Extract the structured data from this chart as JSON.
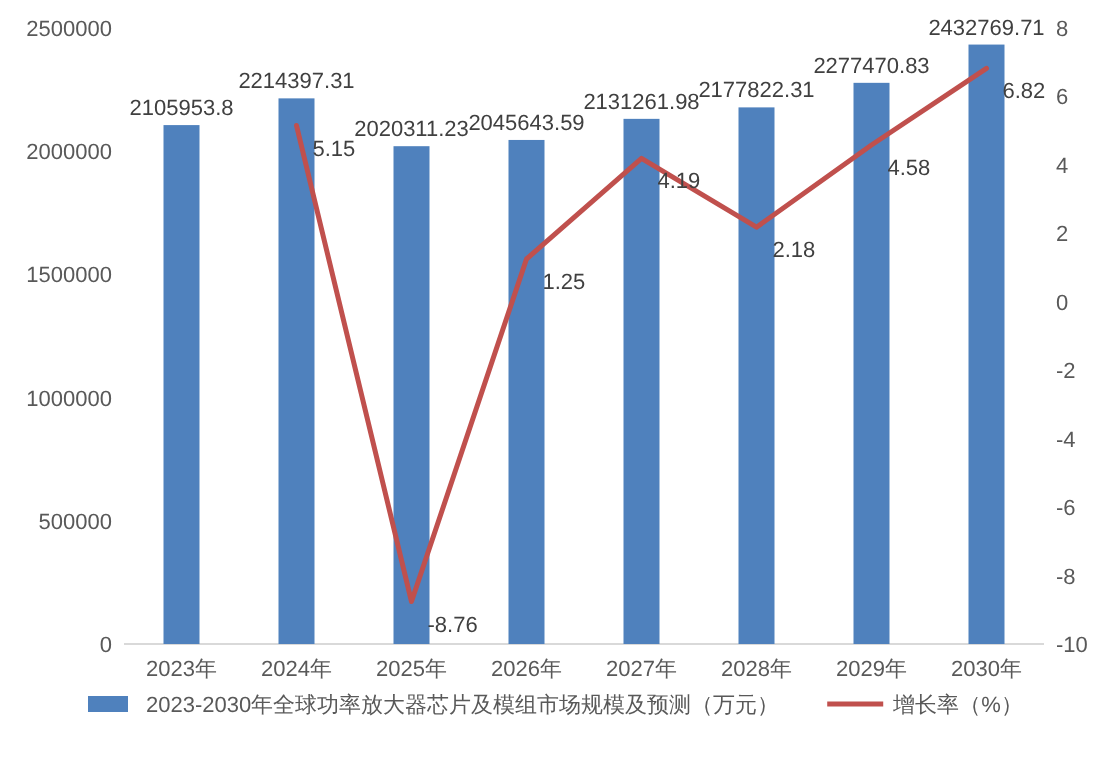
{
  "chart_data": {
    "type": "bar",
    "categories": [
      "2023年",
      "2024年",
      "2025年",
      "2026年",
      "2027年",
      "2028年",
      "2029年",
      "2030年"
    ],
    "series": [
      {
        "name": "2023-2030年全球功率放大器芯片及模组市场规模及预测（万元）",
        "color": "#4f81bd",
        "values": [
          2105953.8,
          2214397.31,
          2020311.23,
          2045643.59,
          2131261.98,
          2177822.31,
          2277470.83,
          2432769.71
        ]
      },
      {
        "name": "增长率（%）",
        "type": "line",
        "axis": "y2",
        "color": "#c0504d",
        "values": [
          null,
          5.15,
          -8.76,
          1.25,
          4.19,
          2.18,
          4.58,
          6.82
        ]
      }
    ],
    "ylim": [
      0,
      2500000
    ],
    "yticks": [
      0,
      500000,
      1000000,
      1500000,
      2000000,
      2500000
    ],
    "y2lim": [
      -10,
      8
    ],
    "y2ticks": [
      -10,
      -8,
      -6,
      -4,
      -2,
      0,
      2,
      4,
      6,
      8
    ],
    "data_labels": true,
    "legend": "bottom"
  }
}
